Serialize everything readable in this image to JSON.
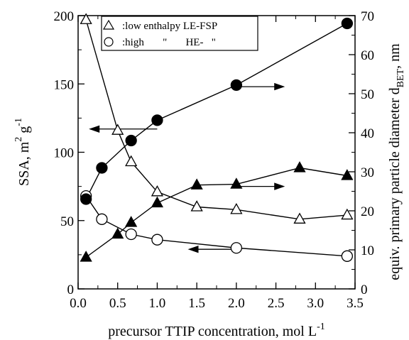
{
  "chart_data": {
    "type": "line",
    "xlabel": "precursor TTIP concentration, mol L",
    "xlabel_sup": "-1",
    "ylabel_left": "SSA, m",
    "ylabel_left_sup1": "2",
    "ylabel_left_mid": " g",
    "ylabel_left_sup2": "-1",
    "ylabel_right": "equiv. primary particle diameter d",
    "ylabel_right_sub": "BET",
    "ylabel_right_unit": ", nm",
    "xlim": [
      0,
      3.5
    ],
    "ylim_left": [
      0,
      200
    ],
    "ylim_right": [
      0,
      70
    ],
    "x_ticks": [
      "0.0",
      "0.5",
      "1.0",
      "1.5",
      "2.0",
      "2.5",
      "3.0",
      "3.5"
    ],
    "y_left_ticks": [
      "0",
      "50",
      "100",
      "150",
      "200"
    ],
    "y_right_ticks": [
      "0",
      "10",
      "20",
      "30",
      "40",
      "50",
      "60",
      "70"
    ],
    "legend": {
      "placement": "top-center",
      "entries": [
        {
          "symbol": "triangle",
          "text": ":low enthalpy LE-FSP"
        },
        {
          "symbol": "circle",
          "text": ":high       \"       HE-   \""
        }
      ]
    },
    "series": [
      {
        "name": "low enthalpy LE-FSP",
        "quantity": "SSA",
        "axis": "left",
        "marker": "triangle-open",
        "x": [
          0.1,
          0.5,
          0.67,
          1.0,
          1.5,
          2.0,
          2.8,
          3.4
        ],
        "y": [
          197,
          116,
          93,
          71,
          60,
          58,
          51,
          54
        ]
      },
      {
        "name": "low enthalpy LE-FSP",
        "quantity": "dBET",
        "axis": "right",
        "marker": "triangle-filled",
        "x": [
          0.1,
          0.5,
          0.67,
          1.0,
          1.5,
          2.0,
          2.8,
          3.4
        ],
        "y": [
          8.1,
          14,
          17,
          22,
          26.6,
          26.8,
          31,
          29
        ]
      },
      {
        "name": "high enthalpy HE-FSP",
        "quantity": "SSA",
        "axis": "left",
        "marker": "circle-open",
        "x": [
          0.1,
          0.3,
          0.67,
          1.0,
          2.0,
          3.4
        ],
        "y": [
          68,
          51,
          40,
          36,
          30,
          24
        ]
      },
      {
        "name": "high enthalpy HE-FSP",
        "quantity": "dBET",
        "axis": "right",
        "marker": "circle-filled",
        "x": [
          0.1,
          0.3,
          0.67,
          1.0,
          2.0,
          3.4
        ],
        "y": [
          23,
          31,
          38,
          43.2,
          52.2,
          68
        ]
      }
    ],
    "arrows": [
      {
        "direction": "left",
        "x_from": 1.0,
        "x_to": 0.15,
        "y_left": 117
      },
      {
        "direction": "right",
        "x_from": 2.05,
        "x_to": 2.6,
        "y_left": 148
      },
      {
        "direction": "right",
        "x_from": 2.05,
        "x_to": 2.6,
        "y_left": 75
      },
      {
        "direction": "left",
        "x_from": 1.95,
        "x_to": 1.4,
        "y_left": 29
      }
    ]
  }
}
